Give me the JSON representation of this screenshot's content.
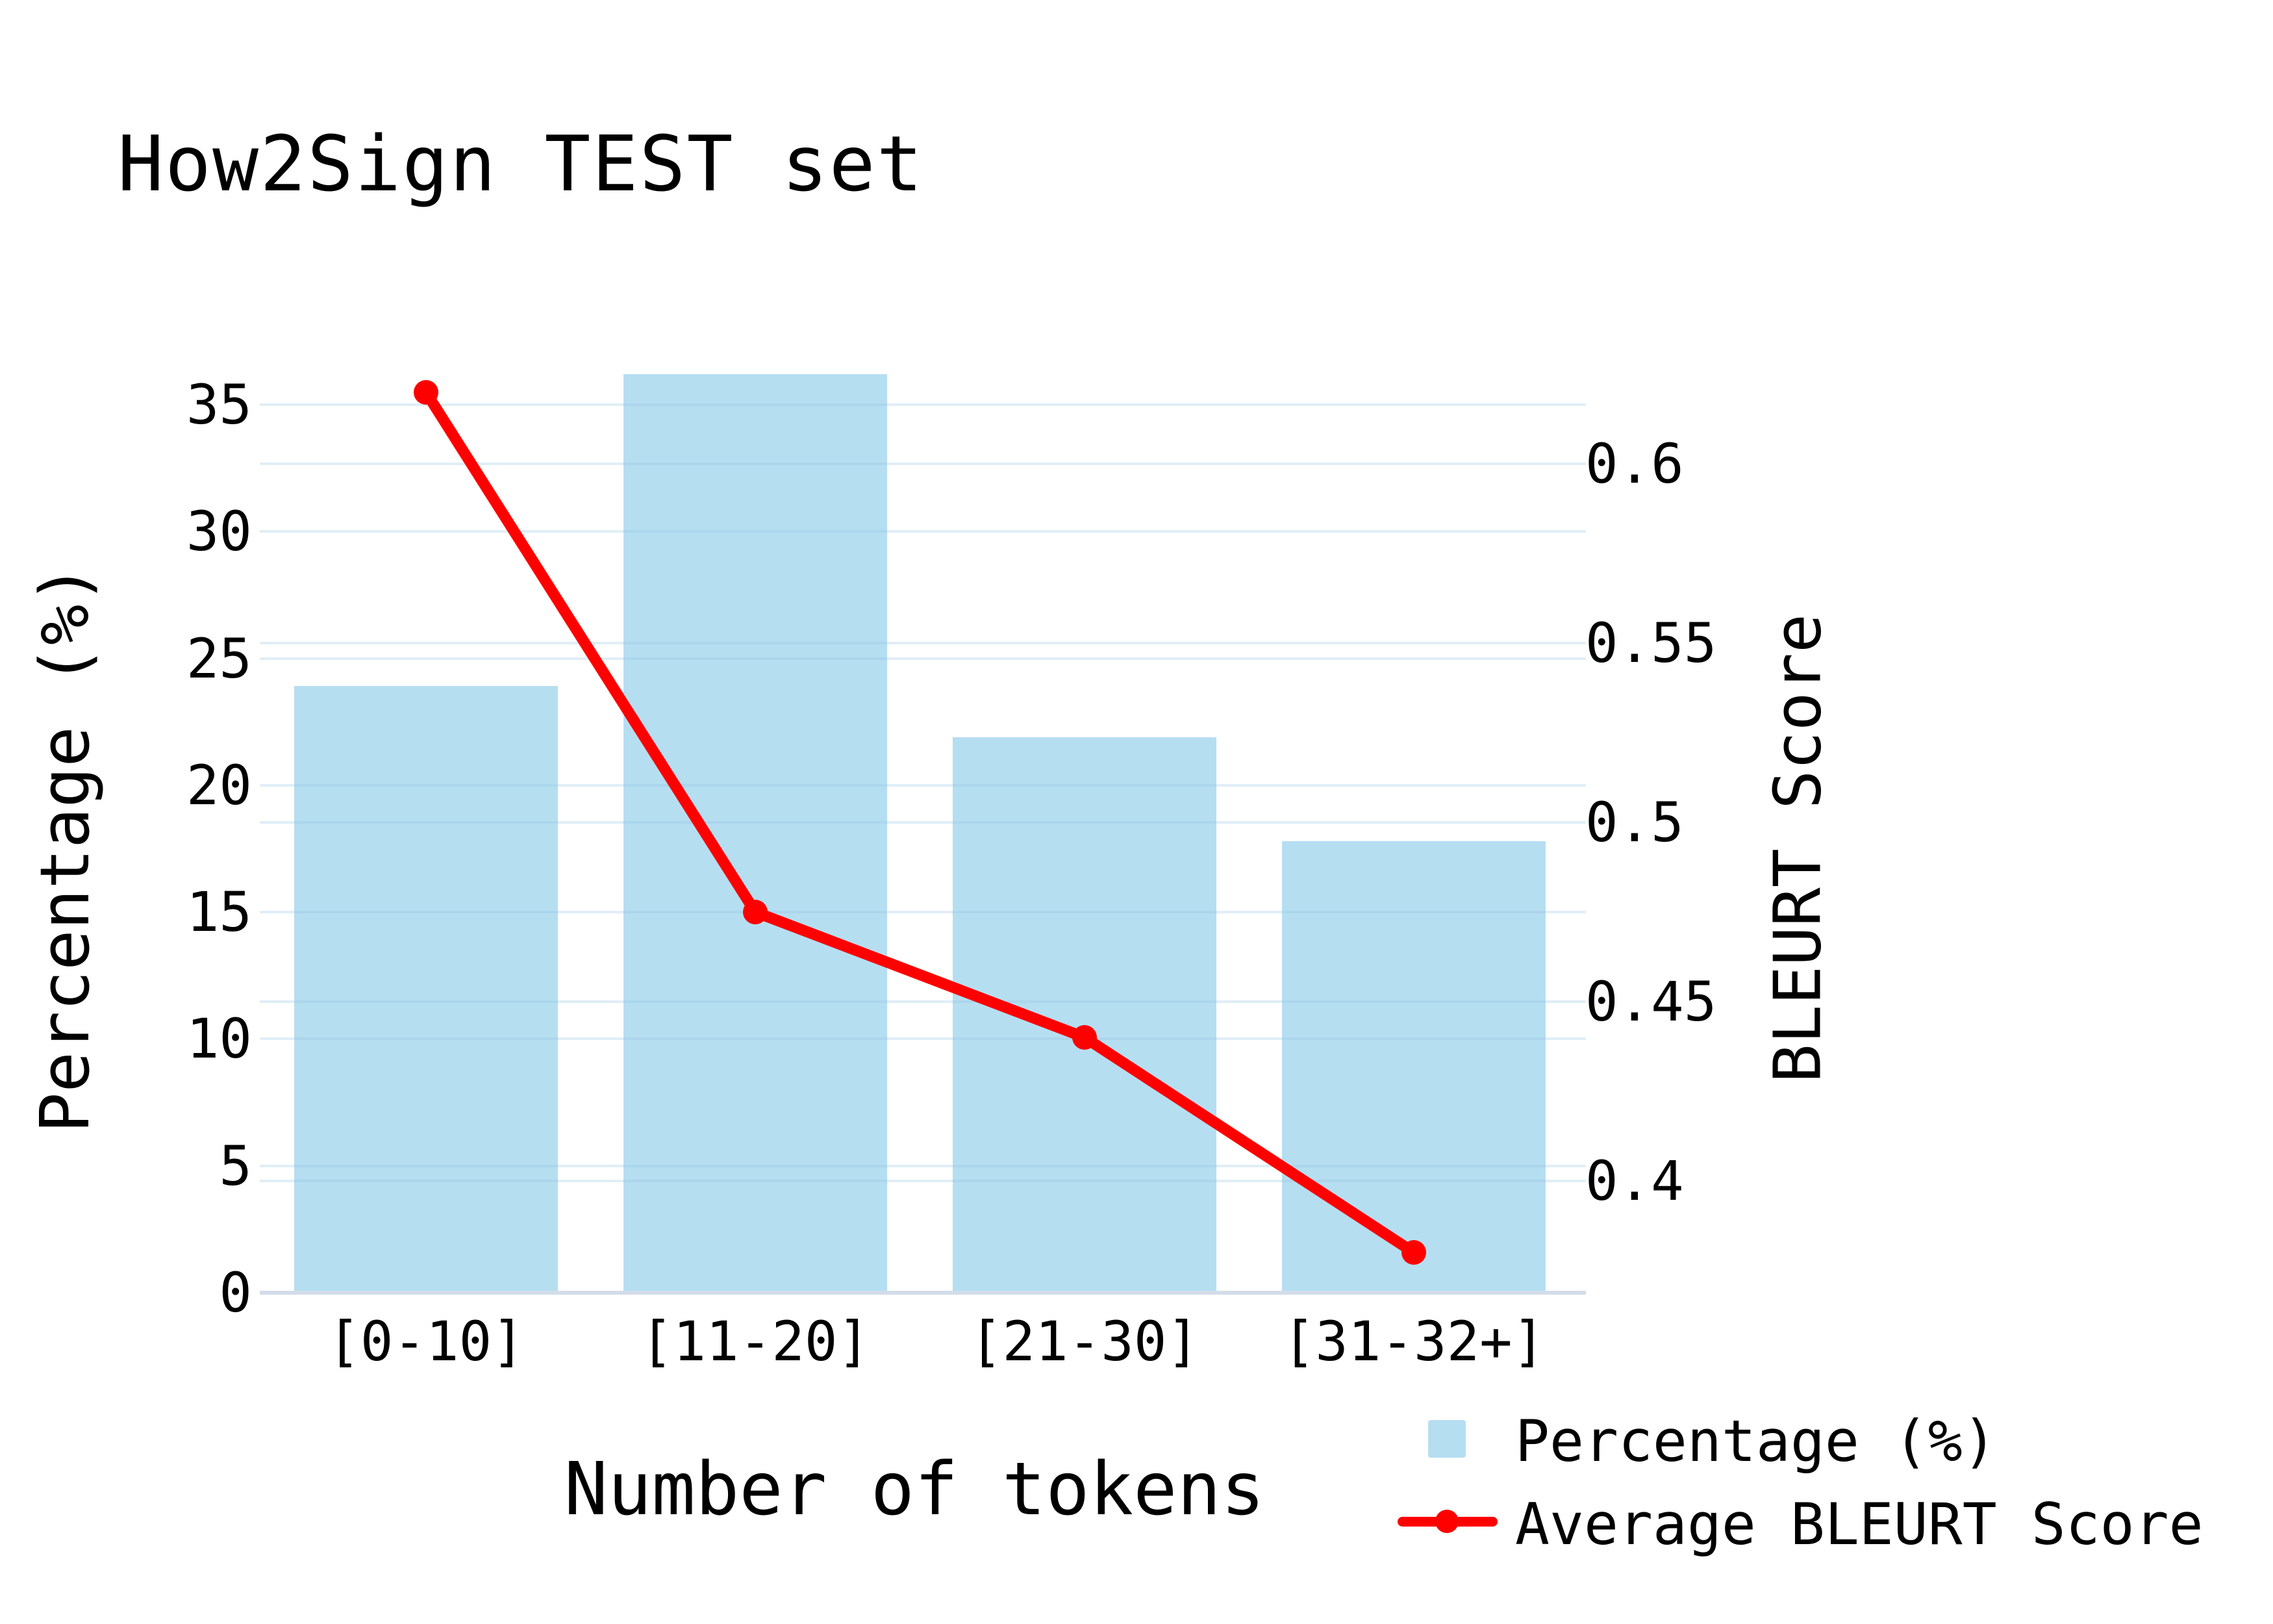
{
  "chart_data": {
    "type": "bar",
    "subtype": "bar-with-line-dual-axis",
    "title": "How2Sign TEST set",
    "categories": [
      "[0-10]",
      "[11-20]",
      "[21-30]",
      "[31-32+]"
    ],
    "series": [
      {
        "name": "Percentage (%)",
        "kind": "bar",
        "axis": "left",
        "color": "#b6def1",
        "values": [
          23.9,
          36.2,
          21.9,
          17.8
        ]
      },
      {
        "name": "Average BLEURT Score",
        "kind": "line",
        "axis": "right",
        "color": "#ff0000",
        "values": [
          0.62,
          0.475,
          0.44,
          0.38
        ]
      }
    ],
    "xlabel": "Number of tokens",
    "ylabel_left": "Percentage (%)",
    "ylabel_right": "BLEURT Score",
    "yticks_left": [
      0,
      5,
      10,
      15,
      20,
      25,
      30,
      35
    ],
    "yticks_right": [
      0.4,
      0.45,
      0.5,
      0.55,
      0.6
    ],
    "ylim_left": [
      0,
      36.8
    ],
    "ylim_right": [
      0.369,
      0.628
    ],
    "grid": true,
    "legend_position": "bottom-right",
    "colors": {
      "bar": "#b6def1",
      "line": "#ff0000",
      "grid": "#e1eaf5",
      "axis_line": "#d3dcea",
      "text": "#000000",
      "background": "#ffffff"
    }
  }
}
